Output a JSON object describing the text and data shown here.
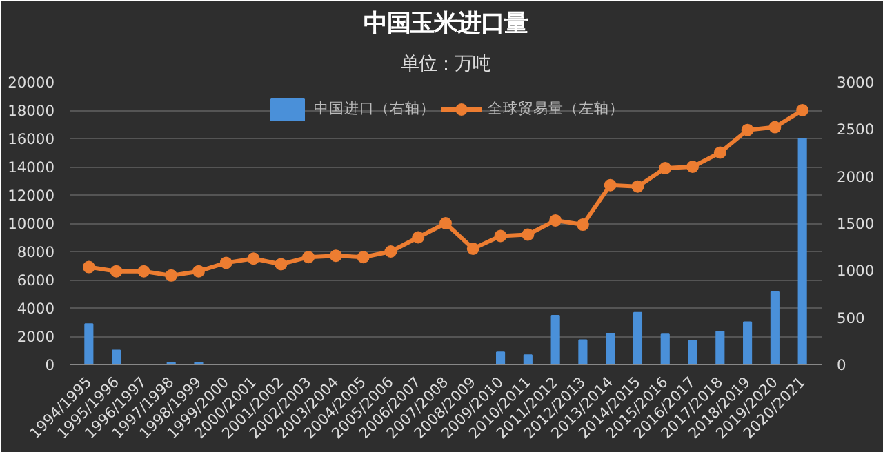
{
  "chart_data": {
    "type": "bar",
    "title": "中国玉米进口量",
    "subtitle": "单位：万吨",
    "categories": [
      "1994/1995",
      "1995/1996",
      "1996/1997",
      "1997/1998",
      "1998/1999",
      "1999/2000",
      "2000/2001",
      "2001/2002",
      "2002/2003",
      "2003/2004",
      "2004/2005",
      "2005/2006",
      "2006/2007",
      "2007/2008",
      "2008/2009",
      "2009/2010",
      "2010/2011",
      "2011/2012",
      "2012/2013",
      "2013/2014",
      "2014/2015",
      "2015/2016",
      "2016/2017",
      "2017/2018",
      "2018/2019",
      "2019/2020",
      "2020/2021"
    ],
    "series": [
      {
        "name": "中国进口（右轴）",
        "axis": "y2",
        "color": "#4a90d9",
        "values": [
          430,
          150,
          0,
          20,
          20,
          0,
          0,
          0,
          0,
          0,
          0,
          0,
          0,
          0,
          0,
          130,
          100,
          520,
          260,
          330,
          550,
          320,
          250,
          350,
          450,
          770,
          2400
        ]
      },
      {
        "name": "全球贸易量（左轴）",
        "type": "line",
        "color": "#ed7d31",
        "marker": "circle",
        "values": [
          6900,
          6600,
          6600,
          6300,
          6600,
          7200,
          7500,
          7100,
          7600,
          7700,
          7600,
          8000,
          9000,
          10000,
          8200,
          9100,
          9200,
          10200,
          9900,
          12700,
          12600,
          13900,
          14000,
          15000,
          16600,
          16800,
          18000
        ]
      }
    ],
    "ylim": [
      0,
      20000
    ],
    "yticks": [
      0,
      2000,
      4000,
      6000,
      8000,
      10000,
      12000,
      14000,
      16000,
      18000,
      20000
    ],
    "y2lim": [
      0,
      3000
    ],
    "y2ticks": [
      0,
      500,
      1000,
      1500,
      2000,
      2500,
      3000
    ],
    "grid": "y",
    "legend": "top"
  }
}
